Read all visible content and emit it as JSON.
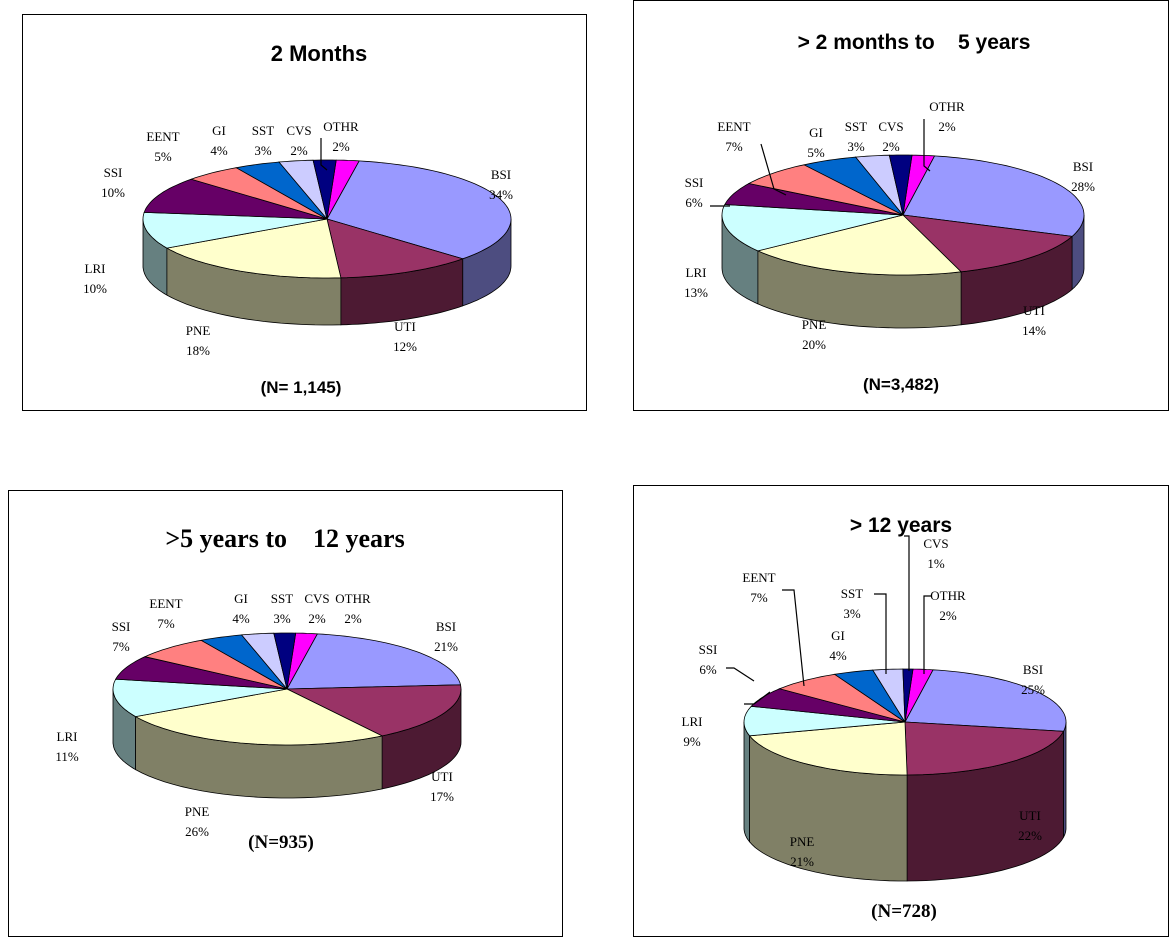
{
  "colors": {
    "BSI": "#9999ff",
    "UTI": "#993366",
    "PNE": "#ffffcc",
    "LRI": "#ccffff",
    "SSI": "#660066",
    "EENT": "#ff8080",
    "GI": "#0066cc",
    "SST": "#ccccff",
    "CVS": "#000080",
    "OTHR": "#ff00ff"
  },
  "chart_data": [
    {
      "type": "pie",
      "title": "2 Months",
      "note": "(N= 1,145)",
      "slices": [
        {
          "name": "BSI",
          "label": "BSI",
          "pct": "34%",
          "value": 34
        },
        {
          "name": "UTI",
          "label": "UTI",
          "pct": "12%",
          "value": 12
        },
        {
          "name": "PNE",
          "label": "PNE",
          "pct": "18%",
          "value": 18
        },
        {
          "name": "LRI",
          "label": "LRI",
          "pct": "10%",
          "value": 10
        },
        {
          "name": "SSI",
          "label": "SSI",
          "pct": "10%",
          "value": 10
        },
        {
          "name": "EENT",
          "label": "EENT",
          "pct": "5%",
          "value": 5
        },
        {
          "name": "GI",
          "label": "GI",
          "pct": "4%",
          "value": 4
        },
        {
          "name": "SST",
          "label": "SST",
          "pct": "3%",
          "value": 3
        },
        {
          "name": "CVS",
          "label": "CVS",
          "pct": "2%",
          "value": 2
        },
        {
          "name": "OTHR",
          "label": "OTHR",
          "pct": "2%",
          "value": 2
        }
      ]
    },
    {
      "type": "pie",
      "title": "> 2 months to    5 years",
      "note": "(N=3,482)",
      "slices": [
        {
          "name": "BSI",
          "label": "BSI",
          "pct": "28%",
          "value": 28
        },
        {
          "name": "UTI",
          "label": "UTI",
          "pct": "14%",
          "value": 14
        },
        {
          "name": "PNE",
          "label": "PNE",
          "pct": "20%",
          "value": 20
        },
        {
          "name": "LRI",
          "label": "LRI",
          "pct": "13%",
          "value": 13
        },
        {
          "name": "SSI",
          "label": "SSI",
          "pct": "6%",
          "value": 6
        },
        {
          "name": "EENT",
          "label": "EENT",
          "pct": "7%",
          "value": 7
        },
        {
          "name": "GI",
          "label": "GI",
          "pct": "5%",
          "value": 5
        },
        {
          "name": "SST",
          "label": "SST",
          "pct": "3%",
          "value": 3
        },
        {
          "name": "CVS",
          "label": "CVS",
          "pct": "2%",
          "value": 2
        },
        {
          "name": "OTHR",
          "label": "OTHR",
          "pct": "2%",
          "value": 2
        }
      ]
    },
    {
      "type": "pie",
      "title": ">5 years to    12 years",
      "note": "(N=935)",
      "slices": [
        {
          "name": "BSI",
          "label": "BSI",
          "pct": "21%",
          "value": 21
        },
        {
          "name": "UTI",
          "label": "UTI",
          "pct": "17%",
          "value": 17
        },
        {
          "name": "PNE",
          "label": "PNE",
          "pct": "26%",
          "value": 26
        },
        {
          "name": "LRI",
          "label": "LRI",
          "pct": "11%",
          "value": 11
        },
        {
          "name": "SSI",
          "label": "SSI",
          "pct": "7%",
          "value": 7
        },
        {
          "name": "EENT",
          "label": "EENT",
          "pct": "7%",
          "value": 7
        },
        {
          "name": "GI",
          "label": "GI",
          "pct": "4%",
          "value": 4
        },
        {
          "name": "SST",
          "label": "SST",
          "pct": "3%",
          "value": 3
        },
        {
          "name": "CVS",
          "label": "CVS",
          "pct": "2%",
          "value": 2
        },
        {
          "name": "OTHR",
          "label": "OTHR",
          "pct": "2%",
          "value": 2
        }
      ]
    },
    {
      "type": "pie",
      "title": "> 12 years",
      "note": "(N=728)",
      "slices": [
        {
          "name": "BSI",
          "label": "BSI",
          "pct": "25%",
          "value": 25
        },
        {
          "name": "UTI",
          "label": "UTI",
          "pct": "22%",
          "value": 22
        },
        {
          "name": "PNE",
          "label": "PNE",
          "pct": "21%",
          "value": 21
        },
        {
          "name": "LRI",
          "label": "LRI",
          "pct": "9%",
          "value": 9
        },
        {
          "name": "SSI",
          "label": "SSI",
          "pct": "6%",
          "value": 6
        },
        {
          "name": "EENT",
          "label": "EENT",
          "pct": "7%",
          "value": 7
        },
        {
          "name": "GI",
          "label": "GI",
          "pct": "4%",
          "value": 4
        },
        {
          "name": "SST",
          "label": "SST",
          "pct": "3%",
          "value": 3
        },
        {
          "name": "CVS",
          "label": "CVS",
          "pct": "1%",
          "value": 1
        },
        {
          "name": "OTHR",
          "label": "OTHR",
          "pct": "2%",
          "value": 2
        }
      ]
    }
  ]
}
